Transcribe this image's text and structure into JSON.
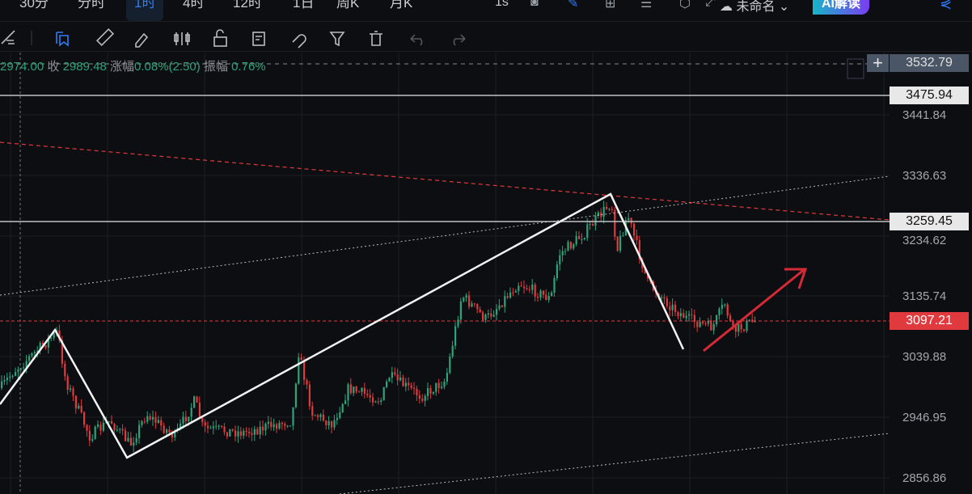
{
  "timeframes": [
    "30分",
    "分时",
    "1时",
    "4时",
    "12时",
    "1日",
    "周K",
    "月K"
  ],
  "active_timeframe": "1时",
  "top_icons": {
    "interval": "1s",
    "layout_name": "未命名",
    "ai_button": "AI解读"
  },
  "info_bar": {
    "open_value": "2974.00",
    "close_label": "收",
    "close_value": "2989.48",
    "change_label": "涨幅",
    "change_value": "0.08%(2.50)",
    "amplitude_label": "振幅",
    "amplitude_value": "0.76%"
  },
  "price_axis": {
    "ticks": [
      "3441.84",
      "3336.63",
      "3234.62",
      "3135.74",
      "3039.88",
      "2946.95",
      "2856.86"
    ],
    "top_label": "3532.79",
    "levels": [
      {
        "value": "3475.94",
        "style": "white"
      },
      {
        "value": "3259.45",
        "style": "white"
      },
      {
        "value": "3097.21",
        "style": "current",
        "color": "#e0393e"
      }
    ]
  },
  "colors": {
    "up": "#2ea37a",
    "down": "#e0393e",
    "accent": "#2f7cf6"
  }
}
